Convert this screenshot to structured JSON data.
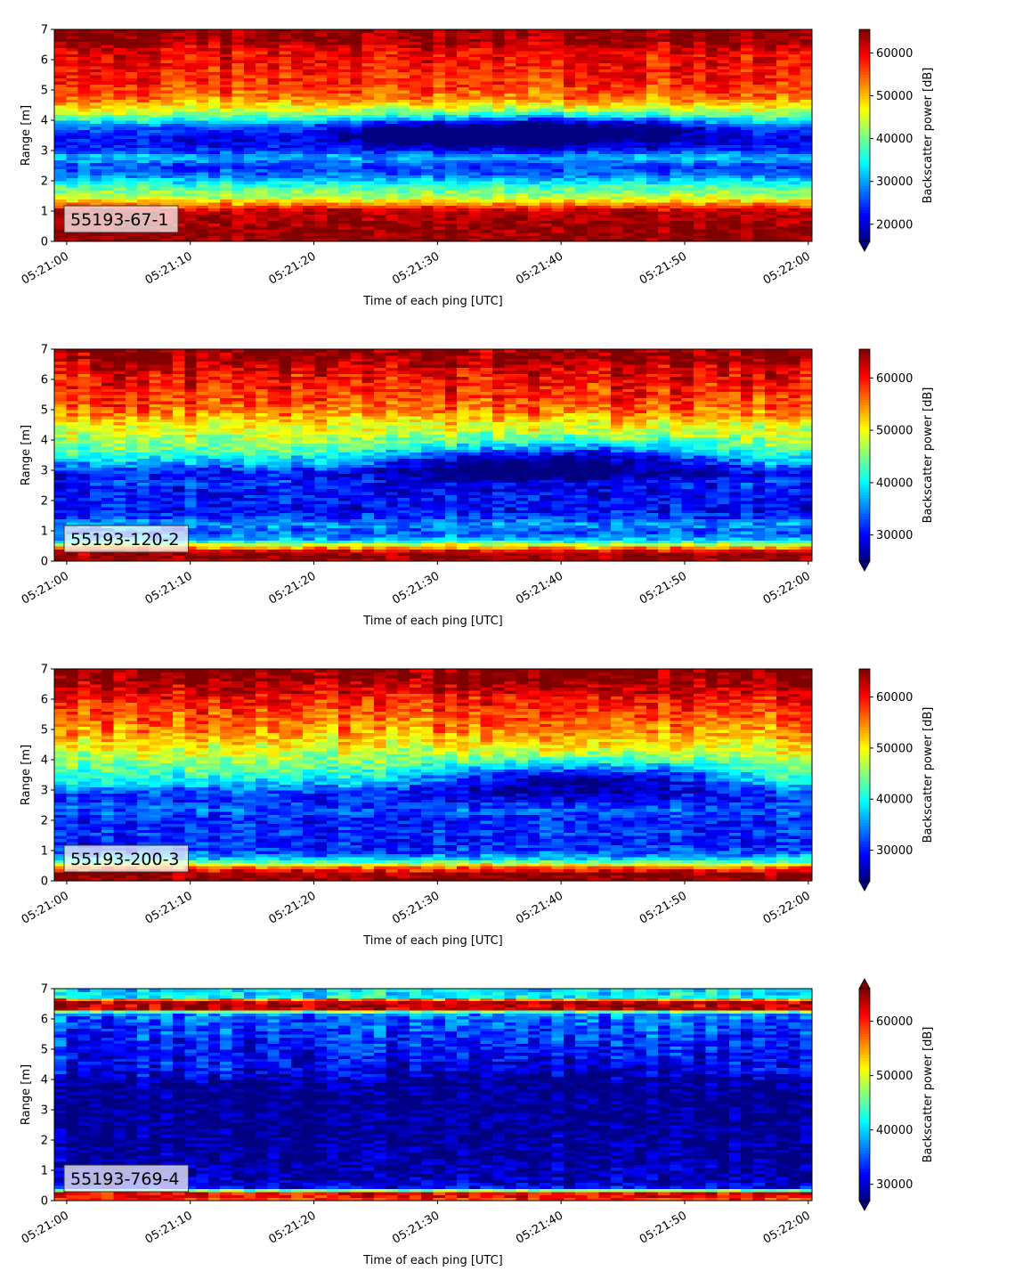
{
  "chart_data": [
    {
      "type": "heatmap",
      "label": "55193-67-1",
      "xlabel": "Time of each ping [UTC]",
      "ylabel": "Range [m]",
      "xticks": [
        "05:21:00",
        "05:21:10",
        "05:21:20",
        "05:21:30",
        "05:21:40",
        "05:21:50",
        "05:22:00"
      ],
      "xlim_seconds": [
        -1,
        60.3
      ],
      "yticks": [
        0,
        1,
        2,
        3,
        4,
        5,
        6,
        7
      ],
      "ylim": [
        0,
        7
      ],
      "colorbar_label": "Backscatter power [dB]",
      "colormap": "jet",
      "clim": [
        16000,
        65500
      ],
      "colorbar_ticks": [
        20000,
        30000,
        40000,
        50000,
        60000
      ],
      "colorbar_extend": "min",
      "profile": [
        [
          0.0,
          65000
        ],
        [
          0.2,
          65000
        ],
        [
          1.0,
          63000
        ],
        [
          1.2,
          55000
        ],
        [
          1.45,
          44000
        ],
        [
          1.75,
          39000
        ],
        [
          1.9,
          36000
        ],
        [
          2.2,
          27000
        ],
        [
          2.5,
          25000
        ],
        [
          2.8,
          32000
        ],
        [
          3.0,
          25000
        ],
        [
          3.2,
          22000
        ],
        [
          3.5,
          22000
        ],
        [
          3.8,
          27000
        ],
        [
          4.1,
          38000
        ],
        [
          4.3,
          44000
        ],
        [
          4.7,
          53000
        ],
        [
          5.2,
          57000
        ],
        [
          5.8,
          59000
        ],
        [
          6.3,
          60000
        ],
        [
          6.6,
          64000
        ],
        [
          7.0,
          65000
        ]
      ],
      "band": {
        "center_start": 3.7,
        "center_mid": 3.65,
        "center_end": 3.85,
        "half_width": 0.5,
        "strength": 16000,
        "t_start": 18,
        "t_end": 56
      }
    },
    {
      "type": "heatmap",
      "label": "55193-120-2",
      "xlabel": "Time of each ping [UTC]",
      "ylabel": "Range [m]",
      "xticks": [
        "05:21:00",
        "05:21:10",
        "05:21:20",
        "05:21:30",
        "05:21:40",
        "05:21:50",
        "05:22:00"
      ],
      "xlim_seconds": [
        -1,
        60.3
      ],
      "yticks": [
        0,
        1,
        2,
        3,
        4,
        5,
        6,
        7
      ],
      "ylim": [
        0,
        7
      ],
      "colorbar_label": "Backscatter power [dB]",
      "colormap": "jet",
      "clim": [
        25000,
        65500
      ],
      "colorbar_ticks": [
        30000,
        40000,
        50000,
        60000
      ],
      "colorbar_extend": "min",
      "profile": [
        [
          0.0,
          65000
        ],
        [
          0.3,
          65000
        ],
        [
          0.45,
          55000
        ],
        [
          0.7,
          38000
        ],
        [
          1.0,
          33000
        ],
        [
          1.2,
          37000
        ],
        [
          1.4,
          33000
        ],
        [
          1.7,
          30000
        ],
        [
          2.0,
          31000
        ],
        [
          2.3,
          30000
        ],
        [
          2.6,
          32000
        ],
        [
          2.9,
          30000
        ],
        [
          3.2,
          36000
        ],
        [
          3.6,
          43000
        ],
        [
          4.0,
          47000
        ],
        [
          4.5,
          50000
        ],
        [
          5.0,
          56000
        ],
        [
          5.6,
          59000
        ],
        [
          6.2,
          61000
        ],
        [
          6.6,
          64000
        ],
        [
          7.0,
          65000
        ]
      ],
      "band": {
        "center_start": 3.4,
        "center_mid": 3.3,
        "center_end": 3.5,
        "half_width": 0.6,
        "strength": 14000,
        "t_start": 22,
        "t_end": 57
      }
    },
    {
      "type": "heatmap",
      "label": "55193-200-3",
      "xlabel": "Time of each ping [UTC]",
      "ylabel": "Range [m]",
      "xticks": [
        "05:21:00",
        "05:21:10",
        "05:21:20",
        "05:21:30",
        "05:21:40",
        "05:21:50",
        "05:22:00"
      ],
      "xlim_seconds": [
        -1,
        60.3
      ],
      "yticks": [
        0,
        1,
        2,
        3,
        4,
        5,
        6,
        7
      ],
      "ylim": [
        0,
        7
      ],
      "colorbar_label": "Backscatter power [dB]",
      "colormap": "jet",
      "clim": [
        24000,
        65500
      ],
      "colorbar_ticks": [
        30000,
        40000,
        50000,
        60000
      ],
      "colorbar_extend": "min",
      "profile": [
        [
          0.0,
          65000
        ],
        [
          0.25,
          65000
        ],
        [
          0.45,
          56000
        ],
        [
          0.7,
          40000
        ],
        [
          0.9,
          33000
        ],
        [
          1.2,
          30000
        ],
        [
          1.6,
          31000
        ],
        [
          2.0,
          30000
        ],
        [
          2.4,
          33000
        ],
        [
          2.7,
          30000
        ],
        [
          3.0,
          33000
        ],
        [
          3.4,
          40000
        ],
        [
          3.8,
          44000
        ],
        [
          4.3,
          48000
        ],
        [
          4.8,
          53000
        ],
        [
          5.3,
          56000
        ],
        [
          5.9,
          59000
        ],
        [
          6.3,
          62000
        ],
        [
          6.7,
          65000
        ],
        [
          7.0,
          65000
        ]
      ],
      "band": {
        "center_start": 3.3,
        "center_mid": 3.35,
        "center_end": 3.45,
        "half_width": 0.55,
        "strength": 14000,
        "t_start": 26,
        "t_end": 57
      }
    },
    {
      "type": "heatmap",
      "label": "55193-769-4",
      "xlabel": "Time of each ping [UTC]",
      "ylabel": "Range [m]",
      "xticks": [
        "05:21:00",
        "05:21:10",
        "05:21:20",
        "05:21:30",
        "05:21:40",
        "05:21:50",
        "05:22:00"
      ],
      "xlim_seconds": [
        -1,
        60.3
      ],
      "yticks": [
        0,
        1,
        2,
        3,
        4,
        5,
        6,
        7
      ],
      "ylim": [
        0,
        7
      ],
      "colorbar_label": "Backscatter power [dB]",
      "colormap": "jet",
      "clim": [
        27000,
        66000
      ],
      "colorbar_ticks": [
        30000,
        40000,
        50000,
        60000
      ],
      "colorbar_extend": "both",
      "profile": [
        [
          0.0,
          58000
        ],
        [
          0.2,
          62000
        ],
        [
          0.3,
          60000
        ],
        [
          0.4,
          32000
        ],
        [
          0.7,
          29000
        ],
        [
          1.5,
          28000
        ],
        [
          2.5,
          27500
        ],
        [
          3.5,
          27500
        ],
        [
          3.9,
          28500
        ],
        [
          4.3,
          32000
        ],
        [
          5.0,
          33000
        ],
        [
          5.6,
          34000
        ],
        [
          6.2,
          37000
        ],
        [
          6.35,
          64000
        ],
        [
          6.6,
          64000
        ],
        [
          6.75,
          42000
        ],
        [
          7.0,
          40000
        ]
      ],
      "band": {
        "center_start": 4.3,
        "center_mid": 4.2,
        "center_end": 4.4,
        "half_width": 0.5,
        "strength": 3000,
        "t_start": 20,
        "t_end": 57
      }
    }
  ]
}
